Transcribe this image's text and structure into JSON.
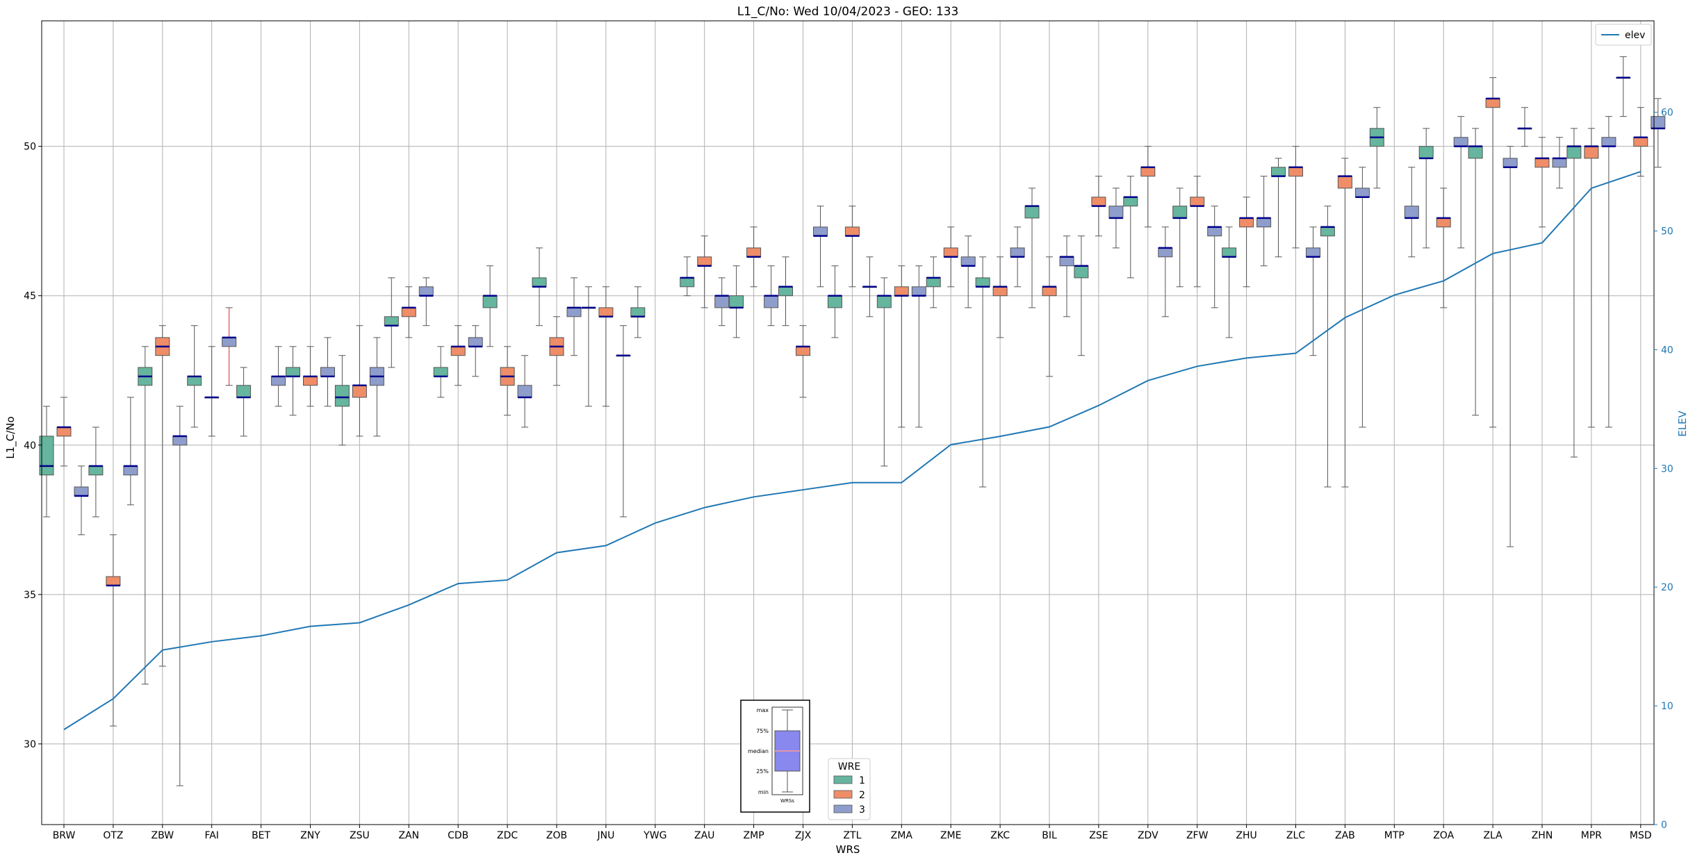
{
  "chart_data": {
    "type": "boxplot",
    "title": "L1_C/No: Wed 10/04/2023 - GEO: 133",
    "xlabel": "WRS",
    "ylabel": "L1_C/No",
    "y2label": "ELEV",
    "ylim": [
      27.3,
      54.2
    ],
    "y2lim": [
      0,
      67.7
    ],
    "yticks": [
      30,
      35,
      40,
      45,
      50
    ],
    "y2ticks": [
      0,
      10,
      20,
      30,
      40,
      50,
      60
    ],
    "grid": true,
    "categories": [
      "BRW",
      "OTZ",
      "ZBW",
      "FAI",
      "BET",
      "ZNY",
      "ZSU",
      "ZAN",
      "CDB",
      "ZDC",
      "ZOB",
      "JNU",
      "YWG",
      "ZAU",
      "ZMP",
      "ZJX",
      "ZTL",
      "ZMA",
      "ZME",
      "ZKC",
      "BIL",
      "ZSE",
      "ZDV",
      "ZFW",
      "ZHU",
      "ZLC",
      "ZAB",
      "MTP",
      "ZOA",
      "ZLA",
      "ZHN",
      "MPR",
      "MSD"
    ],
    "wre_colors": {
      "1": "#66b59e",
      "2": "#ee8d68",
      "3": "#8e9dcb"
    },
    "median_color": "#00008b",
    "boxes": [
      {
        "cat": "BRW",
        "wre": 1,
        "min": 37.6,
        "q1": 39.0,
        "med": 39.3,
        "q3": 40.3,
        "max": 41.3
      },
      {
        "cat": "BRW",
        "wre": 2,
        "min": 39.3,
        "q1": 40.3,
        "med": 40.6,
        "q3": 40.6,
        "max": 41.6
      },
      {
        "cat": "BRW",
        "wre": 3,
        "min": 37.0,
        "q1": 38.3,
        "med": 38.3,
        "q3": 38.6,
        "max": 39.3
      },
      {
        "cat": "OTZ",
        "wre": 1,
        "min": 37.6,
        "q1": 39.0,
        "med": 39.3,
        "q3": 39.3,
        "max": 40.6
      },
      {
        "cat": "OTZ",
        "wre": 2,
        "min": 30.6,
        "q1": 35.3,
        "med": 35.3,
        "q3": 35.6,
        "max": 37.0
      },
      {
        "cat": "OTZ",
        "wre": 3,
        "min": 38.0,
        "q1": 39.0,
        "med": 39.3,
        "q3": 39.3,
        "max": 41.6
      },
      {
        "cat": "ZBW",
        "wre": 1,
        "min": 32.0,
        "q1": 42.0,
        "med": 42.3,
        "q3": 42.6,
        "max": 43.3
      },
      {
        "cat": "ZBW",
        "wre": 2,
        "min": 32.6,
        "q1": 43.0,
        "med": 43.3,
        "q3": 43.6,
        "max": 44.0
      },
      {
        "cat": "ZBW",
        "wre": 3,
        "min": 28.6,
        "q1": 40.0,
        "med": 40.3,
        "q3": 40.3,
        "max": 41.3
      },
      {
        "cat": "FAI",
        "wre": 1,
        "min": 40.6,
        "q1": 42.0,
        "med": 42.3,
        "q3": 42.3,
        "max": 44.0
      },
      {
        "cat": "FAI",
        "wre": 2,
        "min": 40.3,
        "q1": 41.6,
        "med": 41.6,
        "q3": 41.6,
        "max": 43.3
      },
      {
        "cat": "FAI",
        "wre": 3,
        "min": 42.0,
        "q1": 43.3,
        "med": 43.6,
        "q3": 43.6,
        "max": 44.6,
        "whisker_color": "#d62728"
      },
      {
        "cat": "BET",
        "wre": 1,
        "min": 40.3,
        "q1": 41.6,
        "med": 41.6,
        "q3": 42.0,
        "max": 42.6
      },
      {
        "cat": "BET",
        "wre": 3,
        "min": 41.3,
        "q1": 42.0,
        "med": 42.3,
        "q3": 42.3,
        "max": 43.3
      },
      {
        "cat": "ZNY",
        "wre": 1,
        "min": 41.0,
        "q1": 42.3,
        "med": 42.3,
        "q3": 42.6,
        "max": 43.3
      },
      {
        "cat": "ZNY",
        "wre": 2,
        "min": 41.3,
        "q1": 42.0,
        "med": 42.3,
        "q3": 42.3,
        "max": 43.3
      },
      {
        "cat": "ZNY",
        "wre": 3,
        "min": 41.3,
        "q1": 42.3,
        "med": 42.3,
        "q3": 42.6,
        "max": 43.6
      },
      {
        "cat": "ZSU",
        "wre": 1,
        "min": 40.0,
        "q1": 41.3,
        "med": 41.6,
        "q3": 42.0,
        "max": 43.0
      },
      {
        "cat": "ZSU",
        "wre": 2,
        "min": 40.3,
        "q1": 41.6,
        "med": 42.0,
        "q3": 42.0,
        "max": 44.0
      },
      {
        "cat": "ZSU",
        "wre": 3,
        "min": 40.3,
        "q1": 42.0,
        "med": 42.3,
        "q3": 42.6,
        "max": 43.6
      },
      {
        "cat": "ZAN",
        "wre": 1,
        "min": 42.6,
        "q1": 44.0,
        "med": 44.0,
        "q3": 44.3,
        "max": 45.6
      },
      {
        "cat": "ZAN",
        "wre": 2,
        "min": 43.6,
        "q1": 44.3,
        "med": 44.6,
        "q3": 44.6,
        "max": 45.3
      },
      {
        "cat": "ZAN",
        "wre": 3,
        "min": 44.0,
        "q1": 45.0,
        "med": 45.0,
        "q3": 45.3,
        "max": 45.6
      },
      {
        "cat": "CDB",
        "wre": 1,
        "min": 41.6,
        "q1": 42.3,
        "med": 42.3,
        "q3": 42.6,
        "max": 43.3
      },
      {
        "cat": "CDB",
        "wre": 2,
        "min": 42.0,
        "q1": 43.0,
        "med": 43.3,
        "q3": 43.3,
        "max": 44.0
      },
      {
        "cat": "CDB",
        "wre": 3,
        "min": 42.3,
        "q1": 43.3,
        "med": 43.3,
        "q3": 43.6,
        "max": 44.0
      },
      {
        "cat": "ZDC",
        "wre": 1,
        "min": 43.3,
        "q1": 44.6,
        "med": 45.0,
        "q3": 45.0,
        "max": 46.0
      },
      {
        "cat": "ZDC",
        "wre": 2,
        "min": 41.0,
        "q1": 42.0,
        "med": 42.3,
        "q3": 42.6,
        "max": 43.3
      },
      {
        "cat": "ZDC",
        "wre": 3,
        "min": 40.6,
        "q1": 41.6,
        "med": 41.6,
        "q3": 42.0,
        "max": 43.0
      },
      {
        "cat": "ZOB",
        "wre": 1,
        "min": 44.0,
        "q1": 45.3,
        "med": 45.3,
        "q3": 45.6,
        "max": 46.6
      },
      {
        "cat": "ZOB",
        "wre": 2,
        "min": 42.0,
        "q1": 43.0,
        "med": 43.3,
        "q3": 43.6,
        "max": 44.3
      },
      {
        "cat": "ZOB",
        "wre": 3,
        "min": 43.0,
        "q1": 44.3,
        "med": 44.6,
        "q3": 44.6,
        "max": 45.6
      },
      {
        "cat": "JNU",
        "wre": 1,
        "min": 41.3,
        "q1": 44.6,
        "med": 44.6,
        "q3": 44.6,
        "max": 45.3
      },
      {
        "cat": "JNU",
        "wre": 2,
        "min": 41.3,
        "q1": 44.3,
        "med": 44.3,
        "q3": 44.6,
        "max": 45.3
      },
      {
        "cat": "JNU",
        "wre": 3,
        "min": 37.6,
        "q1": 43.0,
        "med": 43.0,
        "q3": 43.0,
        "max": 44.0
      },
      {
        "cat": "YWG",
        "wre": 1,
        "min": 43.6,
        "q1": 44.3,
        "med": 44.3,
        "q3": 44.6,
        "max": 45.3
      },
      {
        "cat": "ZAU",
        "wre": 1,
        "min": 45.0,
        "q1": 45.3,
        "med": 45.6,
        "q3": 45.6,
        "max": 46.3
      },
      {
        "cat": "ZAU",
        "wre": 2,
        "min": 44.6,
        "q1": 46.0,
        "med": 46.0,
        "q3": 46.3,
        "max": 47.0
      },
      {
        "cat": "ZAU",
        "wre": 3,
        "min": 44.0,
        "q1": 44.6,
        "med": 45.0,
        "q3": 45.0,
        "max": 45.6
      },
      {
        "cat": "ZMP",
        "wre": 1,
        "min": 43.6,
        "q1": 44.6,
        "med": 44.6,
        "q3": 45.0,
        "max": 46.0
      },
      {
        "cat": "ZMP",
        "wre": 2,
        "min": 45.3,
        "q1": 46.3,
        "med": 46.3,
        "q3": 46.6,
        "max": 47.3
      },
      {
        "cat": "ZMP",
        "wre": 3,
        "min": 44.0,
        "q1": 44.6,
        "med": 45.0,
        "q3": 45.0,
        "max": 46.0
      },
      {
        "cat": "ZJX",
        "wre": 1,
        "min": 44.0,
        "q1": 45.0,
        "med": 45.3,
        "q3": 45.3,
        "max": 46.3
      },
      {
        "cat": "ZJX",
        "wre": 2,
        "min": 41.6,
        "q1": 43.0,
        "med": 43.3,
        "q3": 43.3,
        "max": 44.0
      },
      {
        "cat": "ZJX",
        "wre": 3,
        "min": 45.3,
        "q1": 47.0,
        "med": 47.0,
        "q3": 47.3,
        "max": 48.0
      },
      {
        "cat": "ZTL",
        "wre": 1,
        "min": 43.6,
        "q1": 44.6,
        "med": 45.0,
        "q3": 45.0,
        "max": 46.0
      },
      {
        "cat": "ZTL",
        "wre": 2,
        "min": 45.3,
        "q1": 47.0,
        "med": 47.0,
        "q3": 47.3,
        "max": 48.0
      },
      {
        "cat": "ZTL",
        "wre": 3,
        "min": 44.3,
        "q1": 45.3,
        "med": 45.3,
        "q3": 45.3,
        "max": 46.3
      },
      {
        "cat": "ZMA",
        "wre": 1,
        "min": 39.3,
        "q1": 44.6,
        "med": 45.0,
        "q3": 45.0,
        "max": 45.6
      },
      {
        "cat": "ZMA",
        "wre": 2,
        "min": 40.6,
        "q1": 45.0,
        "med": 45.0,
        "q3": 45.3,
        "max": 46.0
      },
      {
        "cat": "ZMA",
        "wre": 3,
        "min": 40.6,
        "q1": 45.0,
        "med": 45.0,
        "q3": 45.3,
        "max": 46.0
      },
      {
        "cat": "ZME",
        "wre": 1,
        "min": 44.6,
        "q1": 45.3,
        "med": 45.6,
        "q3": 45.6,
        "max": 46.3
      },
      {
        "cat": "ZME",
        "wre": 2,
        "min": 45.3,
        "q1": 46.3,
        "med": 46.3,
        "q3": 46.6,
        "max": 47.3
      },
      {
        "cat": "ZME",
        "wre": 3,
        "min": 44.6,
        "q1": 46.0,
        "med": 46.0,
        "q3": 46.3,
        "max": 47.0
      },
      {
        "cat": "ZKC",
        "wre": 1,
        "min": 38.6,
        "q1": 45.3,
        "med": 45.3,
        "q3": 45.6,
        "max": 46.3
      },
      {
        "cat": "ZKC",
        "wre": 2,
        "min": 43.6,
        "q1": 45.0,
        "med": 45.3,
        "q3": 45.3,
        "max": 46.3
      },
      {
        "cat": "ZKC",
        "wre": 3,
        "min": 45.3,
        "q1": 46.3,
        "med": 46.3,
        "q3": 46.6,
        "max": 47.3
      },
      {
        "cat": "BIL",
        "wre": 1,
        "min": 44.6,
        "q1": 47.6,
        "med": 48.0,
        "q3": 48.0,
        "max": 48.6
      },
      {
        "cat": "BIL",
        "wre": 2,
        "min": 42.3,
        "q1": 45.0,
        "med": 45.3,
        "q3": 45.3,
        "max": 46.3
      },
      {
        "cat": "BIL",
        "wre": 3,
        "min": 44.3,
        "q1": 46.0,
        "med": 46.3,
        "q3": 46.3,
        "max": 47.0
      },
      {
        "cat": "ZSE",
        "wre": 1,
        "min": 43.0,
        "q1": 45.6,
        "med": 46.0,
        "q3": 46.0,
        "max": 47.0
      },
      {
        "cat": "ZSE",
        "wre": 2,
        "min": 47.0,
        "q1": 48.0,
        "med": 48.0,
        "q3": 48.3,
        "max": 49.0
      },
      {
        "cat": "ZSE",
        "wre": 3,
        "min": 46.6,
        "q1": 47.6,
        "med": 47.6,
        "q3": 48.0,
        "max": 48.6
      },
      {
        "cat": "ZDV",
        "wre": 1,
        "min": 45.6,
        "q1": 48.0,
        "med": 48.3,
        "q3": 48.3,
        "max": 49.0
      },
      {
        "cat": "ZDV",
        "wre": 2,
        "min": 47.3,
        "q1": 49.0,
        "med": 49.3,
        "q3": 49.3,
        "max": 50.0
      },
      {
        "cat": "ZDV",
        "wre": 3,
        "min": 44.3,
        "q1": 46.3,
        "med": 46.6,
        "q3": 46.6,
        "max": 47.3
      },
      {
        "cat": "ZFW",
        "wre": 1,
        "min": 45.3,
        "q1": 47.6,
        "med": 47.6,
        "q3": 48.0,
        "max": 48.6
      },
      {
        "cat": "ZFW",
        "wre": 2,
        "min": 45.3,
        "q1": 48.0,
        "med": 48.0,
        "q3": 48.3,
        "max": 49.0
      },
      {
        "cat": "ZFW",
        "wre": 3,
        "min": 44.6,
        "q1": 47.0,
        "med": 47.3,
        "q3": 47.3,
        "max": 48.0
      },
      {
        "cat": "ZHU",
        "wre": 1,
        "min": 43.6,
        "q1": 46.3,
        "med": 46.3,
        "q3": 46.6,
        "max": 47.3
      },
      {
        "cat": "ZHU",
        "wre": 2,
        "min": 45.3,
        "q1": 47.3,
        "med": 47.6,
        "q3": 47.6,
        "max": 48.3
      },
      {
        "cat": "ZHU",
        "wre": 3,
        "min": 46.0,
        "q1": 47.3,
        "med": 47.6,
        "q3": 47.6,
        "max": 49.0
      },
      {
        "cat": "ZLC",
        "wre": 1,
        "min": 46.3,
        "q1": 49.0,
        "med": 49.0,
        "q3": 49.3,
        "max": 49.6
      },
      {
        "cat": "ZLC",
        "wre": 2,
        "min": 46.6,
        "q1": 49.0,
        "med": 49.3,
        "q3": 49.3,
        "max": 50.0
      },
      {
        "cat": "ZLC",
        "wre": 3,
        "min": 43.0,
        "q1": 46.3,
        "med": 46.3,
        "q3": 46.6,
        "max": 47.3
      },
      {
        "cat": "ZAB",
        "wre": 1,
        "min": 38.6,
        "q1": 47.0,
        "med": 47.3,
        "q3": 47.3,
        "max": 48.0
      },
      {
        "cat": "ZAB",
        "wre": 2,
        "min": 38.6,
        "q1": 48.6,
        "med": 49.0,
        "q3": 49.0,
        "max": 49.6
      },
      {
        "cat": "ZAB",
        "wre": 3,
        "min": 40.6,
        "q1": 48.3,
        "med": 48.3,
        "q3": 48.6,
        "max": 49.3
      },
      {
        "cat": "MTP",
        "wre": 1,
        "min": 48.6,
        "q1": 50.0,
        "med": 50.3,
        "q3": 50.6,
        "max": 51.3
      },
      {
        "cat": "MTP",
        "wre": 3,
        "min": 46.3,
        "q1": 47.6,
        "med": 47.6,
        "q3": 48.0,
        "max": 49.3
      },
      {
        "cat": "ZOA",
        "wre": 1,
        "min": 46.6,
        "q1": 49.6,
        "med": 49.6,
        "q3": 50.0,
        "max": 50.6
      },
      {
        "cat": "ZOA",
        "wre": 2,
        "min": 44.6,
        "q1": 47.3,
        "med": 47.6,
        "q3": 47.6,
        "max": 48.6
      },
      {
        "cat": "ZOA",
        "wre": 3,
        "min": 46.6,
        "q1": 50.0,
        "med": 50.0,
        "q3": 50.3,
        "max": 51.0
      },
      {
        "cat": "ZLA",
        "wre": 1,
        "min": 41.0,
        "q1": 49.6,
        "med": 50.0,
        "q3": 50.0,
        "max": 50.6
      },
      {
        "cat": "ZLA",
        "wre": 2,
        "min": 40.6,
        "q1": 51.3,
        "med": 51.6,
        "q3": 51.6,
        "max": 52.3
      },
      {
        "cat": "ZLA",
        "wre": 3,
        "min": 36.6,
        "q1": 49.3,
        "med": 49.3,
        "q3": 49.6,
        "max": 50.0
      },
      {
        "cat": "ZHN",
        "wre": 1,
        "min": 50.0,
        "q1": 50.6,
        "med": 50.6,
        "q3": 50.6,
        "max": 51.3
      },
      {
        "cat": "ZHN",
        "wre": 2,
        "min": 47.3,
        "q1": 49.3,
        "med": 49.6,
        "q3": 49.6,
        "max": 50.3
      },
      {
        "cat": "ZHN",
        "wre": 3,
        "min": 48.6,
        "q1": 49.3,
        "med": 49.6,
        "q3": 49.6,
        "max": 50.3
      },
      {
        "cat": "MPR",
        "wre": 1,
        "min": 39.6,
        "q1": 49.6,
        "med": 50.0,
        "q3": 50.0,
        "max": 50.6
      },
      {
        "cat": "MPR",
        "wre": 2,
        "min": 40.6,
        "q1": 49.6,
        "med": 50.0,
        "q3": 50.0,
        "max": 50.6
      },
      {
        "cat": "MPR",
        "wre": 3,
        "min": 40.6,
        "q1": 50.0,
        "med": 50.0,
        "q3": 50.3,
        "max": 51.0
      },
      {
        "cat": "MSD",
        "wre": 1,
        "min": 51.0,
        "q1": 52.3,
        "med": 52.3,
        "q3": 52.3,
        "max": 53.0
      },
      {
        "cat": "MSD",
        "wre": 2,
        "min": 49.0,
        "q1": 50.0,
        "med": 50.3,
        "q3": 50.3,
        "max": 51.3
      },
      {
        "cat": "MSD",
        "wre": 3,
        "min": 49.3,
        "q1": 50.6,
        "med": 50.6,
        "q3": 51.0,
        "max": 51.6
      }
    ],
    "elev_series": {
      "name": "elev",
      "color": "#1f77b4",
      "values": [
        8.0,
        10.6,
        14.7,
        15.4,
        15.9,
        16.7,
        17.0,
        18.5,
        20.3,
        20.6,
        22.9,
        23.5,
        25.4,
        26.7,
        27.6,
        28.2,
        28.8,
        28.8,
        32.0,
        32.7,
        33.5,
        35.3,
        37.4,
        38.6,
        39.3,
        39.7,
        42.7,
        44.6,
        45.8,
        48.1,
        49.0,
        53.6,
        55.0
      ]
    },
    "legend_elev": {
      "label": "elev",
      "position": "top-right"
    },
    "legend_wre": {
      "title": "WRE",
      "items": [
        "1",
        "2",
        "3"
      ],
      "position": "bottom-center"
    },
    "box_key": {
      "labels": [
        "max",
        "75%",
        "median",
        "25%",
        "min"
      ],
      "xlabel": "WRSs",
      "fill": "#8888ee",
      "median_color": "#ff9999"
    }
  }
}
